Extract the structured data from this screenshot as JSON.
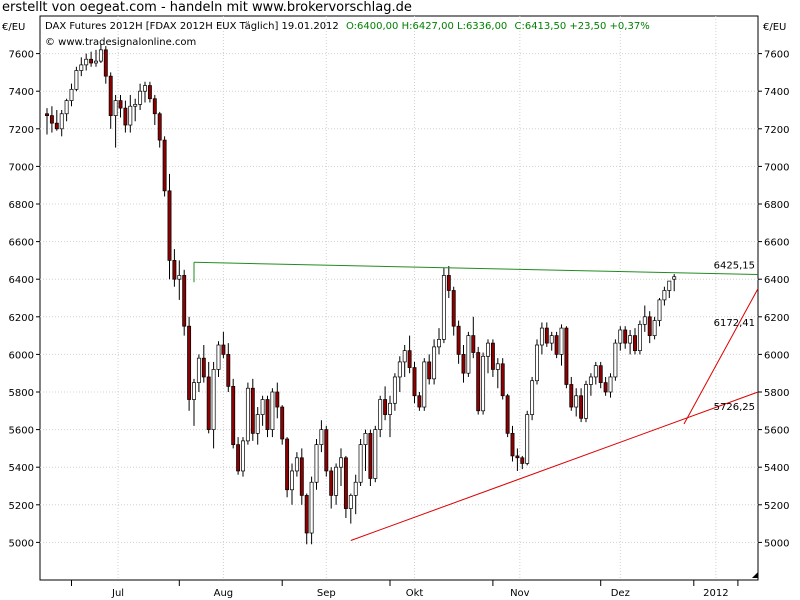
{
  "header": {
    "text": "erstellt von oegeat.com - handeln mit www.brokervorschlag.de"
  },
  "chart_info": {
    "instrument": "DAX Futures 2012H [FDAX 2012H EUX  Täglich] 19.01.2012",
    "ohlc_text": "O:6400,00 H:6427,00 L:6336,00",
    "close_text": "C:6413,50 +23,50 +0,37%",
    "source": "© www.tradesignalonline.com",
    "currency_left": "€/EU",
    "currency_right": "€/EU"
  },
  "colors": {
    "up": "#ffffff",
    "down": "#8b0000",
    "wick": "#000000",
    "resistance": "#228b22",
    "support": "#dd0000",
    "grid": "#d0d0d0",
    "info_green": "#008000"
  },
  "chart_data": {
    "type": "candlestick",
    "ylim": [
      4800,
      7800
    ],
    "y_ticks": [
      "5000",
      "5200",
      "5400",
      "5600",
      "5800",
      "6000",
      "6200",
      "6400",
      "6600",
      "6800",
      "7000",
      "7200",
      "7400",
      "7600"
    ],
    "x_tick_labels": [
      "Jul",
      "Aug",
      "Sep",
      "Okt",
      "Nov",
      "Dez",
      "2012"
    ],
    "lines": [
      {
        "name": "resistance",
        "label": "6425,15",
        "start": [
          30,
          6490
        ],
        "end": [
          147,
          6425
        ]
      },
      {
        "name": "support-steep",
        "label": "6172,41",
        "start": [
          130,
          5630
        ],
        "end": [
          147,
          6350
        ]
      },
      {
        "name": "support-long",
        "label": "5726,25",
        "start": [
          62,
          5010
        ],
        "end": [
          147,
          5800
        ]
      }
    ],
    "candles": [
      [
        7280,
        7310,
        7170,
        7270
      ],
      [
        7270,
        7320,
        7180,
        7230
      ],
      [
        7230,
        7300,
        7190,
        7200
      ],
      [
        7200,
        7300,
        7160,
        7280
      ],
      [
        7280,
        7360,
        7240,
        7350
      ],
      [
        7350,
        7440,
        7320,
        7410
      ],
      [
        7410,
        7530,
        7400,
        7510
      ],
      [
        7510,
        7580,
        7480,
        7540
      ],
      [
        7540,
        7600,
        7510,
        7570
      ],
      [
        7570,
        7610,
        7530,
        7550
      ],
      [
        7550,
        7620,
        7530,
        7560
      ],
      [
        7560,
        7650,
        7550,
        7620
      ],
      [
        7620,
        7640,
        7440,
        7480
      ],
      [
        7480,
        7500,
        7200,
        7270
      ],
      [
        7270,
        7380,
        7100,
        7350
      ],
      [
        7350,
        7380,
        7260,
        7310
      ],
      [
        7310,
        7350,
        7180,
        7220
      ],
      [
        7220,
        7380,
        7180,
        7320
      ],
      [
        7320,
        7360,
        7240,
        7330
      ],
      [
        7330,
        7440,
        7300,
        7400
      ],
      [
        7400,
        7450,
        7340,
        7430
      ],
      [
        7430,
        7450,
        7340,
        7360
      ],
      [
        7360,
        7380,
        7220,
        7280
      ],
      [
        7280,
        7290,
        7100,
        7140
      ],
      [
        7140,
        7160,
        6840,
        6870
      ],
      [
        6870,
        6960,
        6400,
        6500
      ],
      [
        6500,
        6560,
        6360,
        6400
      ],
      [
        6400,
        6500,
        6290,
        6420
      ],
      [
        6420,
        6450,
        6100,
        6150
      ],
      [
        6150,
        6200,
        5700,
        5760
      ],
      [
        5760,
        5870,
        5620,
        5850
      ],
      [
        5850,
        6000,
        5800,
        5980
      ],
      [
        5980,
        6050,
        5850,
        5880
      ],
      [
        5880,
        5960,
        5580,
        5600
      ],
      [
        5600,
        5960,
        5500,
        5920
      ],
      [
        5920,
        6070,
        5880,
        6050
      ],
      [
        6050,
        6120,
        5980,
        6000
      ],
      [
        6000,
        6060,
        5800,
        5830
      ],
      [
        5830,
        5870,
        5500,
        5520
      ],
      [
        5520,
        5560,
        5360,
        5380
      ],
      [
        5380,
        5560,
        5350,
        5540
      ],
      [
        5540,
        5850,
        5520,
        5820
      ],
      [
        5820,
        5870,
        5540,
        5580
      ],
      [
        5580,
        5720,
        5520,
        5680
      ],
      [
        5680,
        5780,
        5620,
        5760
      ],
      [
        5760,
        5780,
        5560,
        5600
      ],
      [
        5600,
        5820,
        5560,
        5800
      ],
      [
        5800,
        5850,
        5660,
        5720
      ],
      [
        5720,
        5730,
        5520,
        5550
      ],
      [
        5550,
        5560,
        5240,
        5280
      ],
      [
        5280,
        5420,
        5200,
        5380
      ],
      [
        5380,
        5480,
        5350,
        5450
      ],
      [
        5450,
        5500,
        5200,
        5250
      ],
      [
        5250,
        5260,
        4990,
        5050
      ],
      [
        5050,
        5350,
        4990,
        5320
      ],
      [
        5320,
        5550,
        5280,
        5520
      ],
      [
        5520,
        5650,
        5480,
        5600
      ],
      [
        5600,
        5620,
        5350,
        5380
      ],
      [
        5380,
        5400,
        5180,
        5250
      ],
      [
        5250,
        5420,
        5200,
        5400
      ],
      [
        5400,
        5500,
        5300,
        5450
      ],
      [
        5450,
        5460,
        5130,
        5180
      ],
      [
        5180,
        5260,
        5100,
        5250
      ],
      [
        5250,
        5360,
        5150,
        5320
      ],
      [
        5320,
        5550,
        5300,
        5520
      ],
      [
        5520,
        5600,
        5380,
        5580
      ],
      [
        5580,
        5600,
        5300,
        5340
      ],
      [
        5340,
        5620,
        5320,
        5600
      ],
      [
        5600,
        5780,
        5560,
        5760
      ],
      [
        5760,
        5830,
        5650,
        5680
      ],
      [
        5680,
        5780,
        5560,
        5740
      ],
      [
        5740,
        5900,
        5700,
        5880
      ],
      [
        5880,
        5990,
        5800,
        5960
      ],
      [
        5960,
        6050,
        5880,
        6020
      ],
      [
        6020,
        6100,
        5900,
        5930
      ],
      [
        5930,
        5960,
        5740,
        5780
      ],
      [
        5780,
        5800,
        5700,
        5720
      ],
      [
        5720,
        5980,
        5700,
        5960
      ],
      [
        5960,
        6000,
        5840,
        5870
      ],
      [
        5870,
        6080,
        5840,
        6040
      ],
      [
        6040,
        6140,
        6000,
        6080
      ],
      [
        6080,
        6460,
        6060,
        6420
      ],
      [
        6420,
        6470,
        6300,
        6340
      ],
      [
        6340,
        6360,
        6100,
        6150
      ],
      [
        6150,
        6180,
        5950,
        6000
      ],
      [
        6000,
        6050,
        5850,
        5900
      ],
      [
        5900,
        6120,
        5880,
        6100
      ],
      [
        6100,
        6200,
        5980,
        6010
      ],
      [
        6010,
        6040,
        5680,
        5700
      ],
      [
        5700,
        6010,
        5680,
        5990
      ],
      [
        5990,
        6080,
        5900,
        6060
      ],
      [
        6060,
        6080,
        5880,
        5920
      ],
      [
        5920,
        5980,
        5820,
        5950
      ],
      [
        5950,
        5980,
        5760,
        5780
      ],
      [
        5780,
        5790,
        5560,
        5580
      ],
      [
        5580,
        5620,
        5430,
        5460
      ],
      [
        5460,
        5500,
        5380,
        5450
      ],
      [
        5450,
        5460,
        5390,
        5420
      ],
      [
        5420,
        5700,
        5410,
        5680
      ],
      [
        5680,
        5880,
        5650,
        5860
      ],
      [
        5860,
        6080,
        5840,
        6050
      ],
      [
        6050,
        6170,
        6000,
        6140
      ],
      [
        6140,
        6170,
        6040,
        6060
      ],
      [
        6060,
        6120,
        6020,
        6100
      ],
      [
        6100,
        6120,
        5980,
        6000
      ],
      [
        6000,
        6160,
        5940,
        6140
      ],
      [
        6140,
        6150,
        5820,
        5840
      ],
      [
        5840,
        5880,
        5700,
        5720
      ],
      [
        5720,
        5820,
        5670,
        5780
      ],
      [
        5780,
        5820,
        5640,
        5660
      ],
      [
        5660,
        5860,
        5640,
        5840
      ],
      [
        5840,
        5900,
        5780,
        5880
      ],
      [
        5880,
        5960,
        5840,
        5940
      ],
      [
        5940,
        5960,
        5820,
        5850
      ],
      [
        5850,
        5880,
        5780,
        5800
      ],
      [
        5800,
        5900,
        5770,
        5880
      ],
      [
        5880,
        6080,
        5860,
        6060
      ],
      [
        6060,
        6150,
        6020,
        6130
      ],
      [
        6130,
        6150,
        6030,
        6060
      ],
      [
        6060,
        6130,
        6000,
        6100
      ],
      [
        6100,
        6140,
        6000,
        6020
      ],
      [
        6020,
        6180,
        6000,
        6160
      ],
      [
        6160,
        6260,
        6120,
        6200
      ],
      [
        6200,
        6230,
        6060,
        6100
      ],
      [
        6100,
        6200,
        6080,
        6180
      ],
      [
        6180,
        6300,
        6150,
        6290
      ],
      [
        6290,
        6360,
        6260,
        6340
      ],
      [
        6340,
        6390,
        6300,
        6390
      ],
      [
        6400,
        6427,
        6336,
        6413
      ]
    ]
  }
}
